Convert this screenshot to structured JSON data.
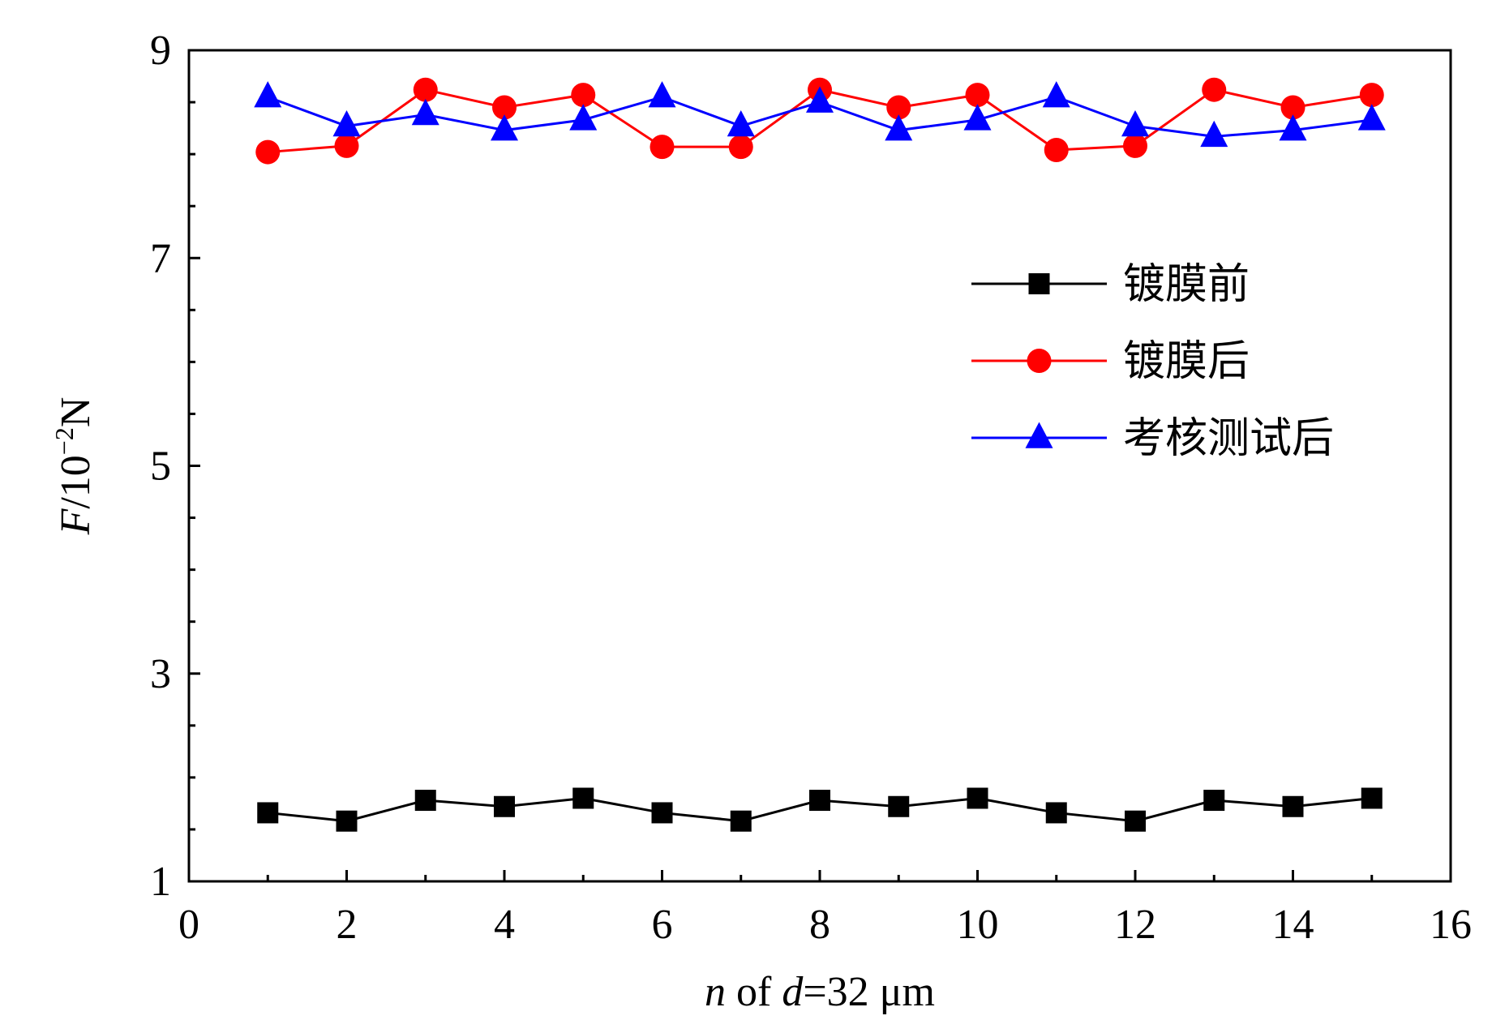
{
  "chart_data": {
    "type": "line",
    "xlabel": {
      "var": "n",
      "mid": " of ",
      "var2": "d",
      "rest": "=32 μm"
    },
    "ylabel": {
      "var": "F",
      "rest": "/10",
      "sup": "−2",
      "unit": "N"
    },
    "xlim": [
      0,
      16
    ],
    "ylim": [
      1,
      9
    ],
    "xticks": [
      0,
      2,
      4,
      6,
      8,
      10,
      12,
      14,
      16
    ],
    "yticks": [
      1,
      3,
      5,
      7,
      9
    ],
    "x_minor_step": 1,
    "y_minor_step": 0.5,
    "grid": false,
    "legend_position": "right-upper",
    "series": [
      {
        "name": "镀膜前",
        "color": "#000000",
        "marker": "square",
        "x": [
          1,
          2,
          3,
          4,
          5,
          6,
          7,
          8,
          9,
          10,
          11,
          12,
          13,
          14,
          15
        ],
        "y": [
          1.66,
          1.58,
          1.78,
          1.72,
          1.8,
          1.66,
          1.58,
          1.78,
          1.72,
          1.8,
          1.66,
          1.58,
          1.78,
          1.72,
          1.8
        ]
      },
      {
        "name": "镀膜后",
        "color": "#ff0000",
        "marker": "circle",
        "x": [
          1,
          2,
          3,
          4,
          5,
          6,
          7,
          8,
          9,
          10,
          11,
          12,
          13,
          14,
          15
        ],
        "y": [
          8.02,
          8.08,
          8.62,
          8.45,
          8.57,
          8.07,
          8.07,
          8.62,
          8.45,
          8.57,
          8.04,
          8.08,
          8.62,
          8.45,
          8.57
        ]
      },
      {
        "name": "考核测试后",
        "color": "#0000ff",
        "marker": "triangle",
        "x": [
          1,
          2,
          3,
          4,
          5,
          6,
          7,
          8,
          9,
          10,
          11,
          12,
          13,
          14,
          15
        ],
        "y": [
          8.55,
          8.27,
          8.38,
          8.23,
          8.33,
          8.55,
          8.27,
          8.5,
          8.23,
          8.33,
          8.55,
          8.27,
          8.17,
          8.23,
          8.33
        ]
      }
    ]
  }
}
